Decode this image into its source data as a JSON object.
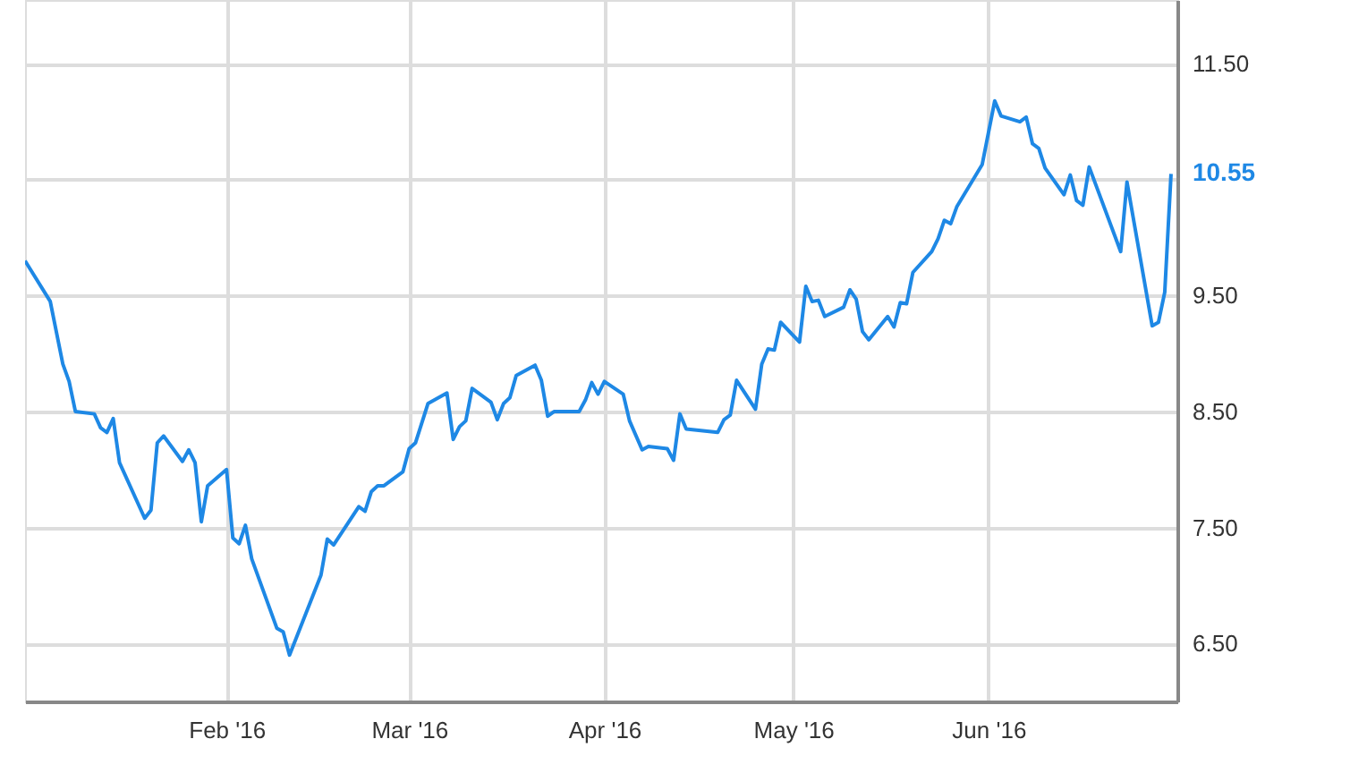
{
  "chart_data": {
    "type": "line",
    "x": [
      "2015-12-31",
      "2016-01-04",
      "2016-01-06",
      "2016-01-07",
      "2016-01-08",
      "2016-01-11",
      "2016-01-12",
      "2016-01-13",
      "2016-01-14",
      "2016-01-15",
      "2016-01-19",
      "2016-01-20",
      "2016-01-21",
      "2016-01-22",
      "2016-01-25",
      "2016-01-26",
      "2016-01-27",
      "2016-01-28",
      "2016-01-29",
      "2016-02-01",
      "2016-02-02",
      "2016-02-03",
      "2016-02-04",
      "2016-02-05",
      "2016-02-09",
      "2016-02-10",
      "2016-02-11",
      "2016-02-16",
      "2016-02-17",
      "2016-02-18",
      "2016-02-22",
      "2016-02-23",
      "2016-02-24",
      "2016-02-25",
      "2016-02-26",
      "2016-02-29",
      "2016-03-01",
      "2016-03-02",
      "2016-03-04",
      "2016-03-07",
      "2016-03-08",
      "2016-03-09",
      "2016-03-10",
      "2016-03-11",
      "2016-03-14",
      "2016-03-15",
      "2016-03-16",
      "2016-03-17",
      "2016-03-18",
      "2016-03-21",
      "2016-03-22",
      "2016-03-23",
      "2016-03-24",
      "2016-03-28",
      "2016-03-29",
      "2016-03-30",
      "2016-03-31",
      "2016-04-01",
      "2016-04-04",
      "2016-04-05",
      "2016-04-07",
      "2016-04-08",
      "2016-04-11",
      "2016-04-12",
      "2016-04-13",
      "2016-04-14",
      "2016-04-19",
      "2016-04-20",
      "2016-04-21",
      "2016-04-22",
      "2016-04-25",
      "2016-04-26",
      "2016-04-27",
      "2016-04-28",
      "2016-04-29",
      "2016-05-02",
      "2016-05-03",
      "2016-05-04",
      "2016-05-05",
      "2016-05-06",
      "2016-05-09",
      "2016-05-10",
      "2016-05-11",
      "2016-05-12",
      "2016-05-13",
      "2016-05-16",
      "2016-05-17",
      "2016-05-18",
      "2016-05-19",
      "2016-05-20",
      "2016-05-23",
      "2016-05-24",
      "2016-05-25",
      "2016-05-26",
      "2016-05-27",
      "2016-05-31",
      "2016-06-02",
      "2016-06-03",
      "2016-06-06",
      "2016-06-07",
      "2016-06-08",
      "2016-06-09",
      "2016-06-10",
      "2016-06-13",
      "2016-06-14",
      "2016-06-15",
      "2016-06-16",
      "2016-06-17",
      "2016-06-22",
      "2016-06-23",
      "2016-06-27",
      "2016-06-28",
      "2016-06-29",
      "2016-06-30"
    ],
    "series": [
      {
        "color": "#1e88e5",
        "values": [
          9.8,
          9.45,
          8.91,
          8.76,
          8.5,
          8.48,
          8.36,
          8.32,
          8.44,
          8.06,
          7.58,
          7.65,
          8.23,
          8.29,
          8.07,
          8.17,
          8.06,
          7.55,
          7.86,
          8.0,
          7.41,
          7.36,
          7.52,
          7.23,
          6.63,
          6.6,
          6.4,
          7.09,
          7.4,
          7.35,
          7.68,
          7.64,
          7.81,
          7.86,
          7.86,
          7.98,
          8.18,
          8.23,
          8.57,
          8.66,
          8.26,
          8.37,
          8.42,
          8.7,
          8.58,
          8.43,
          8.57,
          8.62,
          8.81,
          8.9,
          8.77,
          8.46,
          8.5,
          8.5,
          8.6,
          8.75,
          8.65,
          8.76,
          8.65,
          8.42,
          8.17,
          8.2,
          8.18,
          8.08,
          8.48,
          8.35,
          8.32,
          8.43,
          8.47,
          8.77,
          8.52,
          8.91,
          9.04,
          9.03,
          9.27,
          9.1,
          9.58,
          9.45,
          9.46,
          9.32,
          9.4,
          9.55,
          9.47,
          9.19,
          9.12,
          9.32,
          9.23,
          9.44,
          9.43,
          9.7,
          9.88,
          9.99,
          10.15,
          10.12,
          10.27,
          10.63,
          11.18,
          11.05,
          11.0,
          11.04,
          10.81,
          10.77,
          10.6,
          10.37,
          10.54,
          10.32,
          10.28,
          10.61,
          9.88,
          10.48,
          9.24,
          9.27,
          9.53,
          10.55
        ]
      }
    ],
    "xlim": [
      "2015-12-31",
      "2016-07-01"
    ],
    "xticks": [
      {
        "value": "2016-02-01",
        "label": "Feb '16"
      },
      {
        "value": "2016-03-01",
        "label": "Mar '16"
      },
      {
        "value": "2016-04-01",
        "label": "Apr '16"
      },
      {
        "value": "2016-05-01",
        "label": "May '16"
      },
      {
        "value": "2016-06-01",
        "label": "Jun '16"
      }
    ],
    "ylim": [
      6.0,
      12.05
    ],
    "yticks": [
      {
        "value": 6.5,
        "label": "6.50"
      },
      {
        "value": 7.5,
        "label": "7.50"
      },
      {
        "value": 8.5,
        "label": "8.50"
      },
      {
        "value": 9.5,
        "label": "9.50"
      },
      {
        "value": 10.5,
        "label": null
      },
      {
        "value": 11.5,
        "label": "11.50"
      }
    ],
    "annotations": [
      {
        "text": "10.55",
        "x": "2016-06-30",
        "y": 10.55
      }
    ],
    "grid": true,
    "marker": "none",
    "line_style": "solid"
  }
}
